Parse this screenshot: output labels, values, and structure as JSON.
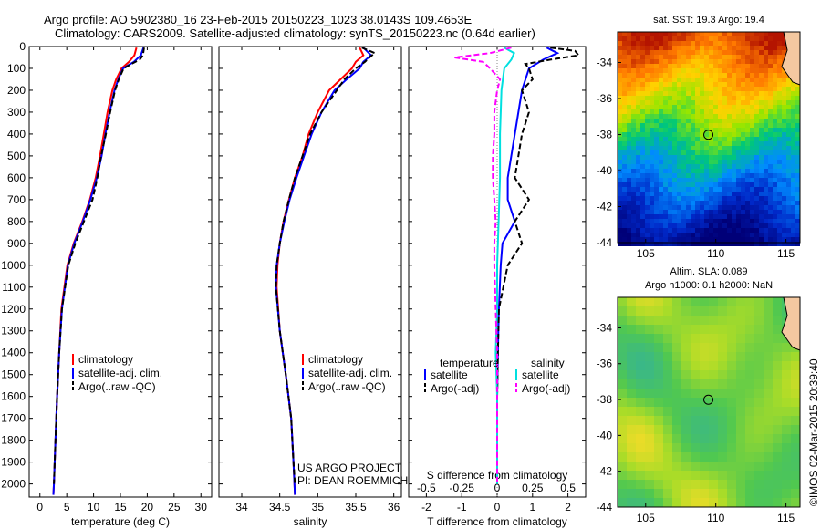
{
  "header": {
    "line1": "Argo profile: AO 5902380_16 23-Feb-2015 20150223_1023 38.0143S 109.4653E",
    "line2": "Climatology: CARS2009. Satellite-adjusted climatology: synTS_20150223.nc (0.64d earlier)"
  },
  "colors": {
    "red": "#ff0000",
    "blue": "#0000ff",
    "black": "#000000",
    "cyan": "#00e0e0",
    "magenta": "#ff00ff"
  },
  "y_ticks": [
    0,
    100,
    200,
    300,
    400,
    500,
    600,
    700,
    800,
    900,
    1000,
    1100,
    1200,
    1300,
    1400,
    1500,
    1600,
    1700,
    1800,
    1900,
    2000
  ],
  "chart_data": [
    {
      "type": "line",
      "xlabel": "temperature (deg C)",
      "xlim": [
        -2,
        32
      ],
      "ylim": [
        2060,
        0
      ],
      "x_ticks": [
        0,
        5,
        10,
        15,
        20,
        25,
        30
      ],
      "legend": [
        "climatology",
        "satellite-adj. clim.",
        "Argo(..raw -QC)"
      ],
      "series": [
        {
          "name": "climatology",
          "depth": [
            5,
            40,
            70,
            100,
            150,
            200,
            300,
            400,
            500,
            600,
            700,
            800,
            900,
            1000,
            1200,
            1400,
            1600,
            1800,
            2000,
            2050
          ],
          "values": [
            18.0,
            17.6,
            16.6,
            15.2,
            14.2,
            13.5,
            12.6,
            11.9,
            11.2,
            10.4,
            9.3,
            7.9,
            6.3,
            5.1,
            4.0,
            3.6,
            3.2,
            2.9,
            2.6,
            2.5
          ]
        },
        {
          "name": "satellite-adj. clim.",
          "depth": [
            5,
            40,
            70,
            100,
            150,
            200,
            300,
            400,
            500,
            600,
            700,
            800,
            900,
            1000,
            1200,
            1400,
            1600,
            1800,
            2000,
            2050
          ],
          "values": [
            19.3,
            18.8,
            17.5,
            15.5,
            14.6,
            13.9,
            13.0,
            12.2,
            11.5,
            10.6,
            9.4,
            8.0,
            6.4,
            5.2,
            4.1,
            3.6,
            3.2,
            2.9,
            2.6,
            2.5
          ]
        },
        {
          "name": "Argo(..raw -QC)",
          "depth": [
            5,
            40,
            60,
            80,
            100,
            150,
            200,
            300,
            400,
            500,
            600,
            700,
            800,
            900,
            1000,
            1200,
            1400,
            1600,
            1800,
            2000
          ],
          "values": [
            19.4,
            19.2,
            18.6,
            17.0,
            15.6,
            14.7,
            14.0,
            13.1,
            12.3,
            11.4,
            10.7,
            9.8,
            8.2,
            6.6,
            5.3,
            4.1,
            3.6,
            3.2,
            2.9,
            2.6
          ]
        }
      ]
    },
    {
      "type": "line",
      "xlabel": "salinity",
      "xlim": [
        33.7,
        36.1
      ],
      "ylim": [
        2060,
        0
      ],
      "x_ticks": [
        34,
        34.5,
        35,
        35.5,
        36
      ],
      "legend": [
        "climatology",
        "satellite-adj. clim.",
        "Argo(..raw -QC)"
      ],
      "annotation": [
        "US ARGO PROJECT",
        "PI: DEAN ROEMMICH"
      ],
      "series": [
        {
          "name": "climatology",
          "depth": [
            5,
            40,
            70,
            100,
            150,
            200,
            300,
            400,
            500,
            600,
            700,
            800,
            900,
            1000,
            1100,
            1300,
            1500,
            1700,
            1900,
            2050
          ],
          "values": [
            35.55,
            35.6,
            35.5,
            35.45,
            35.3,
            35.15,
            35.0,
            34.88,
            34.8,
            34.7,
            34.62,
            34.55,
            34.5,
            34.47,
            34.46,
            34.5,
            34.58,
            34.65,
            34.68,
            34.7
          ]
        },
        {
          "name": "satellite-adj. clim.",
          "depth": [
            5,
            40,
            70,
            100,
            150,
            200,
            300,
            400,
            500,
            600,
            700,
            800,
            900,
            1000,
            1100,
            1300,
            1500,
            1700,
            1900,
            2050
          ],
          "values": [
            35.6,
            35.7,
            35.6,
            35.55,
            35.38,
            35.22,
            35.05,
            34.92,
            34.82,
            34.72,
            34.63,
            34.56,
            34.5,
            34.46,
            34.45,
            34.5,
            34.58,
            34.65,
            34.68,
            34.7
          ]
        },
        {
          "name": "Argo(..raw -QC)",
          "depth": [
            5,
            30,
            50,
            70,
            100,
            150,
            200,
            300,
            400,
            500,
            600,
            700,
            800,
            900,
            1000,
            1100,
            1300,
            1500,
            1700,
            1900,
            2000
          ],
          "values": [
            35.58,
            35.75,
            35.68,
            35.62,
            35.5,
            35.35,
            35.25,
            35.05,
            34.9,
            34.8,
            34.7,
            34.62,
            34.55,
            34.5,
            34.46,
            34.45,
            34.5,
            34.58,
            34.65,
            34.68,
            34.7
          ]
        }
      ]
    },
    {
      "type": "line",
      "xlabel": "T difference from climatology",
      "top_label": "S difference from climatology",
      "xlim": [
        -2.5,
        2.5
      ],
      "ylim": [
        2060,
        0
      ],
      "x_ticks": [
        -2,
        -1,
        0,
        1,
        2
      ],
      "x_tick_labels": [
        "-2",
        "-1",
        "0",
        "1",
        "2"
      ],
      "x2_ticks": [
        -0.5,
        -0.25,
        0,
        0.25,
        0.5
      ],
      "x2_tick_labels": [
        "-0.5",
        "-0.25",
        "0",
        "0.25",
        "0.5"
      ],
      "x2lim": [
        -0.625,
        0.625
      ],
      "legend_titles": [
        "temperature",
        "salinity"
      ],
      "legend": [
        "satellite",
        "Argo(-adj)",
        "satellite",
        "Argo(-adj)"
      ],
      "series": [
        {
          "name": "satellite",
          "quantity": "temperature",
          "depth": [
            5,
            30,
            60,
            100,
            200,
            300,
            400,
            500,
            600,
            700,
            800,
            900,
            1000,
            1200,
            1400,
            1600,
            1800,
            2000
          ],
          "values": [
            1.4,
            1.7,
            1.3,
            0.9,
            0.7,
            0.6,
            0.5,
            0.4,
            0.3,
            0.3,
            0.5,
            0.15,
            0.1,
            0.05,
            0.02,
            0.0,
            0.0,
            0.0
          ]
        },
        {
          "name": "Argo(-adj)",
          "quantity": "temperature",
          "depth": [
            5,
            20,
            40,
            60,
            80,
            100,
            150,
            200,
            300,
            400,
            500,
            600,
            700,
            800,
            900,
            1000,
            1200,
            1400,
            1600,
            1800,
            2000
          ],
          "values": [
            1.5,
            2.2,
            2.3,
            1.5,
            0.8,
            0.9,
            1.0,
            0.7,
            0.9,
            0.7,
            0.6,
            0.5,
            0.9,
            0.5,
            0.7,
            0.3,
            0.05,
            0.02,
            0.0,
            0.0,
            0.0
          ]
        },
        {
          "name": "satellite",
          "quantity": "salinity",
          "depth": [
            5,
            30,
            60,
            100,
            200,
            400,
            600,
            800,
            1000,
            1200,
            1400,
            1600,
            1800,
            2000
          ],
          "values": [
            0.05,
            0.12,
            0.1,
            0.05,
            0.03,
            0.02,
            0.02,
            0.01,
            0.0,
            0.0,
            -0.01,
            0.0,
            0.0,
            0.0
          ]
        },
        {
          "name": "Argo(-adj)",
          "quantity": "salinity",
          "depth": [
            5,
            30,
            50,
            70,
            100,
            150,
            200,
            300,
            400,
            500,
            600,
            700,
            800,
            900,
            1000,
            1200,
            1400,
            1600,
            1800,
            2000
          ],
          "values": [
            0.1,
            -0.05,
            -0.3,
            -0.1,
            -0.05,
            0.02,
            0.0,
            -0.02,
            -0.02,
            -0.03,
            -0.03,
            -0.02,
            -0.01,
            -0.02,
            -0.02,
            -0.01,
            0.0,
            0.0,
            0.0,
            0.0
          ]
        }
      ]
    },
    {
      "type": "heatmap",
      "title": "sat. SST: 19.3 Argo: 19.4",
      "xlim": [
        103,
        116
      ],
      "ylim": [
        -44,
        -32.3
      ],
      "x_ticks": [
        105,
        110,
        115
      ],
      "y_ticks": [
        -34,
        -36,
        -38,
        -40,
        -42,
        -44
      ],
      "marker": {
        "lon": 109.47,
        "lat": -38.01
      }
    },
    {
      "type": "heatmap",
      "title_lines": [
        "Altim. SLA: 0.089",
        "Argo h1000: 0.1 h2000: NaN"
      ],
      "xlim": [
        103,
        116
      ],
      "ylim": [
        -44,
        -32.3
      ],
      "x_ticks": [
        105,
        110,
        115
      ],
      "y_ticks": [
        -34,
        -36,
        -38,
        -40,
        -42,
        -44
      ],
      "marker": {
        "lon": 109.47,
        "lat": -38.01
      }
    }
  ],
  "credit": "©IMOS 02-Mar-2015 20:39:40"
}
